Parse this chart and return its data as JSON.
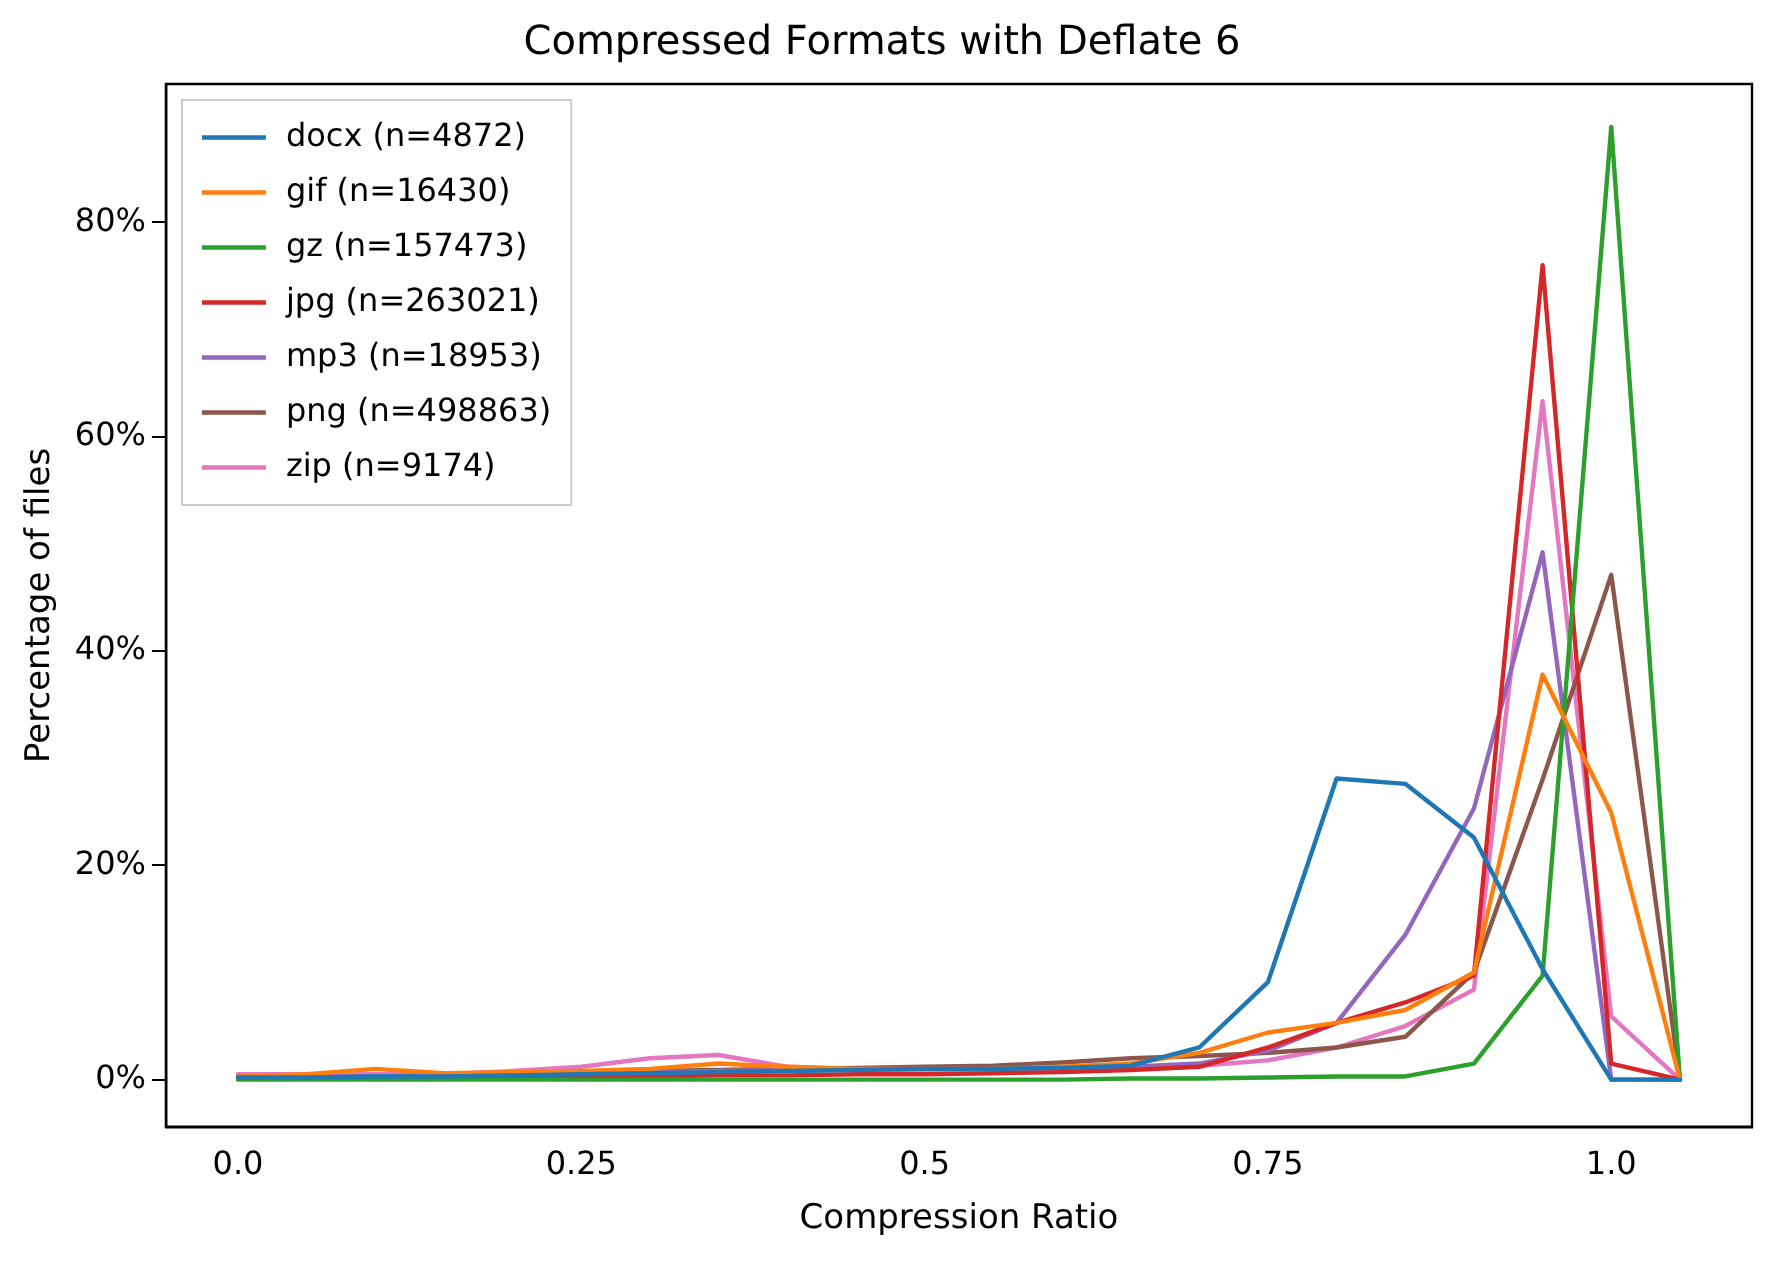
{
  "chart_data": {
    "type": "line",
    "title": "Compressed Formats with Deflate 6",
    "xlabel": "Compression Ratio",
    "ylabel": "Percentage of files",
    "x": [
      0,
      0.05,
      0.1,
      0.15,
      0.2,
      0.25,
      0.3,
      0.35,
      0.4,
      0.45,
      0.5,
      0.55,
      0.6,
      0.65,
      0.7,
      0.75,
      0.8,
      0.85,
      0.9,
      0.95,
      1.0,
      1.05
    ],
    "series": [
      {
        "name": "docx (n=4872)",
        "color": "#1f77b4",
        "values": [
          0.2,
          0.2,
          0.3,
          0.3,
          0.4,
          0.5,
          0.6,
          0.7,
          0.8,
          0.9,
          1.0,
          1.0,
          1.1,
          1.3,
          3.0,
          9.1,
          28.1,
          27.6,
          22.6,
          10.3,
          0,
          0
        ]
      },
      {
        "name": "gif (n=16430)",
        "color": "#ff7f0e",
        "values": [
          0.3,
          0.5,
          1.0,
          0.6,
          0.7,
          0.8,
          1.0,
          1.5,
          1.2,
          1.0,
          1.0,
          1.0,
          1.2,
          1.5,
          2.5,
          4.4,
          5.3,
          6.5,
          10.0,
          37.8,
          24.9,
          0
        ]
      },
      {
        "name": "gz (n=157473)",
        "color": "#2ca02c",
        "values": [
          0,
          0,
          0,
          0,
          0,
          0,
          0,
          0,
          0,
          0,
          0,
          0,
          0,
          0.1,
          0.1,
          0.2,
          0.3,
          0.3,
          1.5,
          9.7,
          88.9,
          0
        ]
      },
      {
        "name": "jpg (n=263021)",
        "color": "#d62728",
        "values": [
          0.2,
          0.2,
          0.2,
          0.2,
          0.3,
          0.3,
          0.3,
          0.4,
          0.4,
          0.5,
          0.5,
          0.6,
          0.7,
          0.9,
          1.2,
          3.0,
          5.3,
          7.2,
          9.7,
          76.0,
          1.5,
          0
        ]
      },
      {
        "name": "mp3 (n=18953)",
        "color": "#9467bd",
        "values": [
          0.3,
          0.3,
          0.3,
          0.4,
          0.5,
          0.6,
          0.7,
          0.8,
          0.9,
          1.0,
          1.0,
          1.0,
          1.1,
          1.2,
          1.5,
          2.7,
          5.3,
          13.5,
          25.3,
          49.2,
          0,
          0
        ]
      },
      {
        "name": "png (n=498863)",
        "color": "#8c564b",
        "values": [
          0.2,
          0.2,
          0.3,
          0.4,
          0.5,
          0.6,
          0.8,
          0.9,
          1.0,
          1.1,
          1.2,
          1.3,
          1.6,
          2.0,
          2.2,
          2.5,
          3.0,
          4.0,
          10.0,
          28.0,
          47.1,
          0
        ]
      },
      {
        "name": "zip (n=9174)",
        "color": "#e377c2",
        "values": [
          0.5,
          0.5,
          0.5,
          0.5,
          0.8,
          1.2,
          2.0,
          2.3,
          1.2,
          1.0,
          1.0,
          1.0,
          1.0,
          1.1,
          1.3,
          1.8,
          3.0,
          5.0,
          8.4,
          63.3,
          5.9,
          0
        ]
      }
    ],
    "xlim": [
      -0.0525,
      1.1025
    ],
    "xticks": [
      {
        "value": 0,
        "label": "0.0"
      },
      0.25,
      0.5,
      0.75,
      {
        "value": 1,
        "label": "1.0"
      }
    ],
    "ylim": [
      -4.4,
      92.9
    ],
    "yticks": [
      {
        "value": 0,
        "label": "0%"
      },
      {
        "value": 20,
        "label": "20%"
      },
      {
        "value": 40,
        "label": "40%"
      },
      {
        "value": 60,
        "label": "60%"
      },
      {
        "value": 80,
        "label": "80%"
      }
    ],
    "grid": false,
    "legend": "top left",
    "marker": "none",
    "line_style": "solid"
  }
}
